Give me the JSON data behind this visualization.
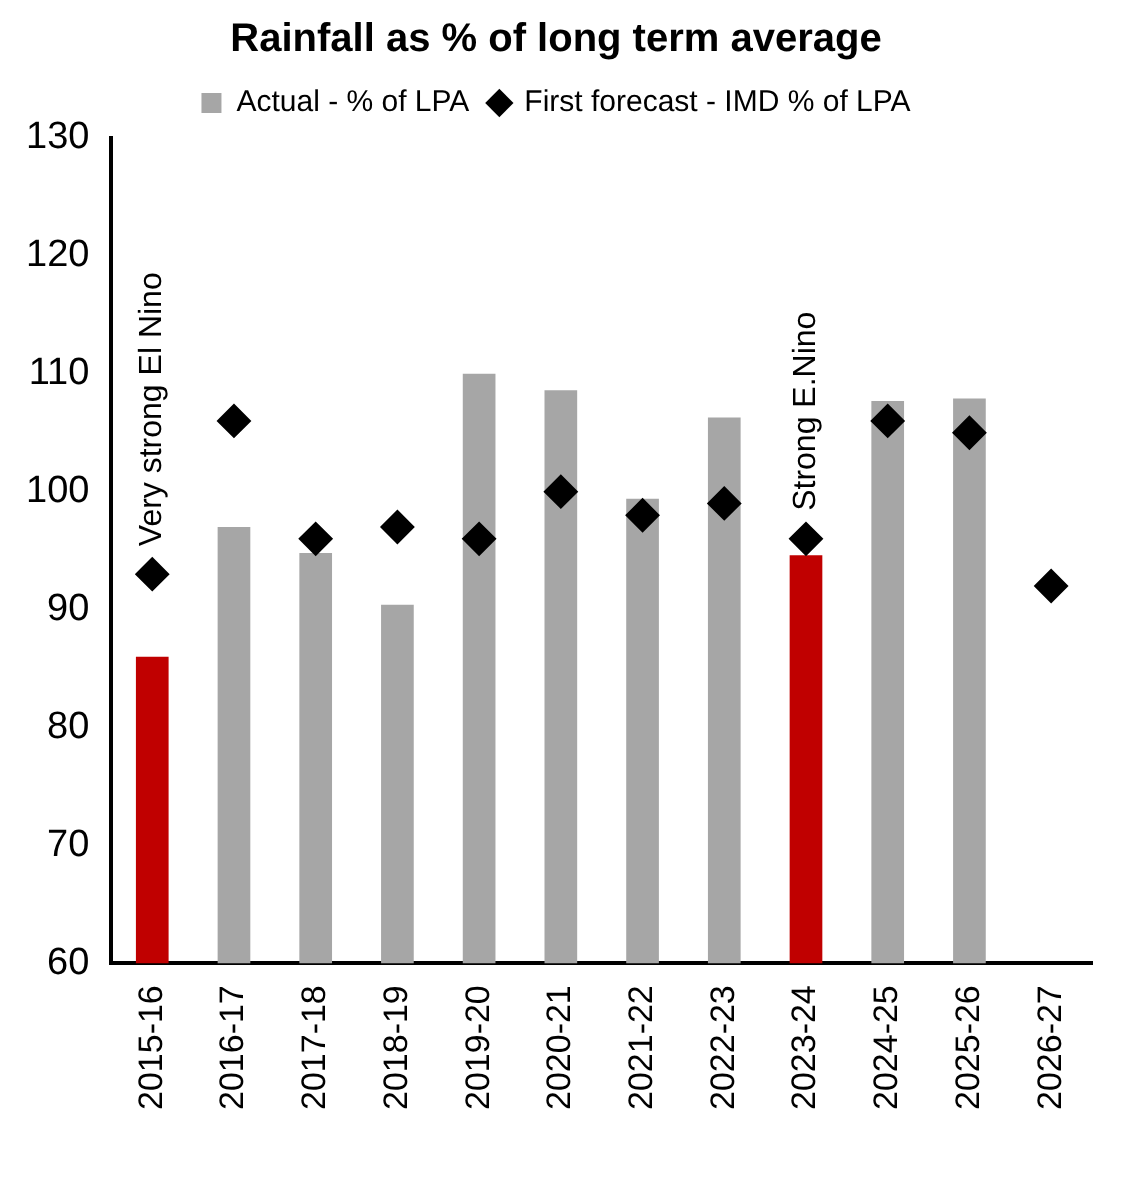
{
  "chart_data": {
    "type": "bar",
    "title": "Rainfall as % of long term average",
    "categories": [
      "2015-16",
      "2016-17",
      "2017-18",
      "2018-19",
      "2019-20",
      "2020-21",
      "2021-22",
      "2022-23",
      "2023-24",
      "2024-25",
      "2025-26",
      "2026-27"
    ],
    "series": [
      {
        "name": "Actual - % of LPA",
        "color": "#a6a6a6",
        "colors": [
          "#c00000",
          "#a6a6a6",
          "#a6a6a6",
          "#a6a6a6",
          "#a6a6a6",
          "#a6a6a6",
          "#a6a6a6",
          "#a6a6a6",
          "#c00000",
          "#a6a6a6",
          "#a6a6a6",
          "#a6a6a6"
        ],
        "values": [
          86,
          97,
          94.8,
          90.4,
          110,
          108.6,
          99.4,
          106.3,
          94.6,
          107.7,
          107.9,
          null
        ]
      },
      {
        "name": "First forecast - IMD % of LPA",
        "type": "scatter",
        "color": "#000000",
        "marker": "diamond",
        "values": [
          93,
          106,
          96,
          97,
          96,
          100,
          98,
          99,
          96,
          106,
          105,
          92
        ]
      }
    ],
    "ylim": [
      60,
      130
    ],
    "yticks": [
      60,
      70,
      80,
      90,
      100,
      110,
      120,
      130
    ],
    "grid": false,
    "legend": "top",
    "annotations": [
      {
        "text": "Very strong El Nino",
        "x": "2015-16",
        "y": 93
      },
      {
        "text": "Strong E.Nino",
        "x": "2023-24",
        "y": 96
      }
    ]
  }
}
